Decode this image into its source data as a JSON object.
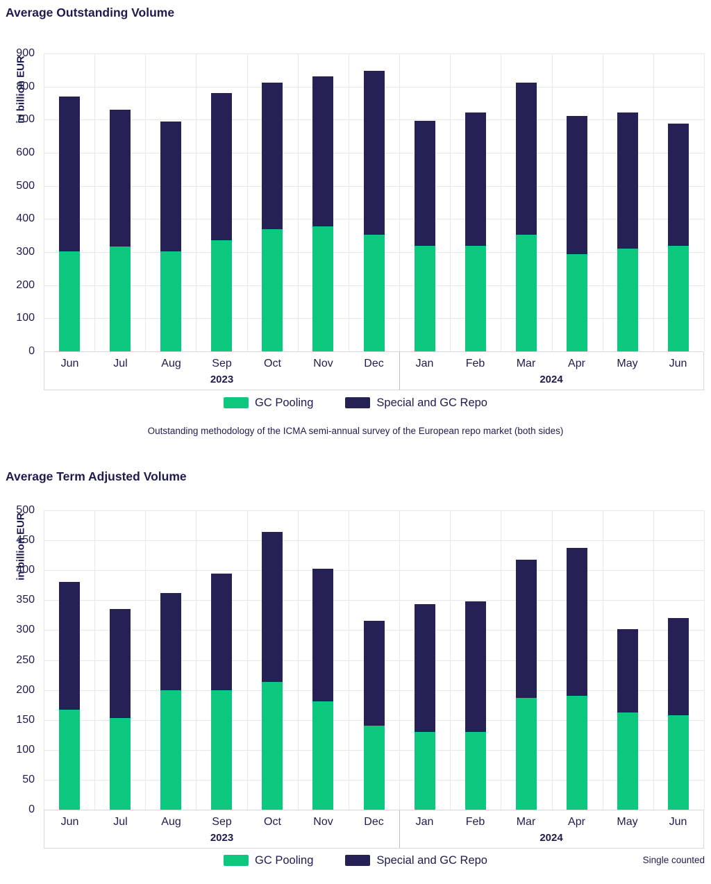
{
  "page": {
    "background": "#ffffff"
  },
  "colors": {
    "gc_pooling": "#0cc87f",
    "special_gc_repo": "#262154",
    "text": "#1e1b4f",
    "gridline": "#e8e8e8",
    "band_border": "#d8d8d8",
    "year_separator": "#bdbdbd"
  },
  "legend": {
    "items": [
      {
        "label": "GC Pooling",
        "color": "#0cc87f"
      },
      {
        "label": "Special and GC Repo",
        "color": "#262154"
      }
    ]
  },
  "chart_data": [
    {
      "type": "bar",
      "stacked": true,
      "title": "Average Outstanding Volume",
      "ylabel": "in billion EUR",
      "ylim": [
        0,
        900
      ],
      "ytick_step": 100,
      "grid": "horizontal and vertical, light gray",
      "legend_position": "bottom-center",
      "categories": [
        "Jun",
        "Jul",
        "Aug",
        "Sep",
        "Oct",
        "Nov",
        "Dec",
        "Jan",
        "Feb",
        "Mar",
        "Apr",
        "May",
        "Jun"
      ],
      "year_groups": [
        {
          "label": "2023",
          "start": 0,
          "span": 7
        },
        {
          "label": "2024",
          "start": 7,
          "span": 6
        }
      ],
      "series": [
        {
          "name": "GC Pooling",
          "color": "#0cc87f",
          "values": [
            302,
            317,
            302,
            335,
            370,
            377,
            352,
            318,
            318,
            352,
            293,
            310,
            318
          ]
        },
        {
          "name": "Special and GC Repo",
          "color": "#262154",
          "values": [
            468,
            413,
            393,
            445,
            442,
            453,
            495,
            378,
            403,
            460,
            419,
            411,
            370
          ]
        }
      ],
      "totals": [
        770,
        730,
        695,
        780,
        812,
        830,
        847,
        696,
        721,
        812,
        712,
        721,
        688
      ],
      "caption": "Outstanding methodology of the ICMA semi-annual survey of the European repo market (both sides)"
    },
    {
      "type": "bar",
      "stacked": true,
      "title": "Average Term Adjusted Volume",
      "ylabel": "in billion EUR",
      "ylim": [
        0,
        500
      ],
      "ytick_step": 50,
      "grid": "horizontal and vertical, light gray",
      "legend_position": "bottom-center",
      "categories": [
        "Jun",
        "Jul",
        "Aug",
        "Sep",
        "Oct",
        "Nov",
        "Dec",
        "Jan",
        "Feb",
        "Mar",
        "Apr",
        "May",
        "Jun"
      ],
      "year_groups": [
        {
          "label": "2023",
          "start": 0,
          "span": 7
        },
        {
          "label": "2024",
          "start": 7,
          "span": 6
        }
      ],
      "series": [
        {
          "name": "GC Pooling",
          "color": "#0cc87f",
          "values": [
            167,
            153,
            200,
            200,
            213,
            181,
            140,
            130,
            130,
            187,
            190,
            163,
            158
          ]
        },
        {
          "name": "Special and GC Repo",
          "color": "#262154",
          "values": [
            213,
            182,
            162,
            194,
            251,
            222,
            176,
            214,
            218,
            231,
            247,
            139,
            162
          ]
        }
      ],
      "totals": [
        380,
        335,
        362,
        394,
        464,
        403,
        316,
        344,
        348,
        418,
        437,
        302,
        320
      ],
      "note": "Single counted"
    }
  ]
}
